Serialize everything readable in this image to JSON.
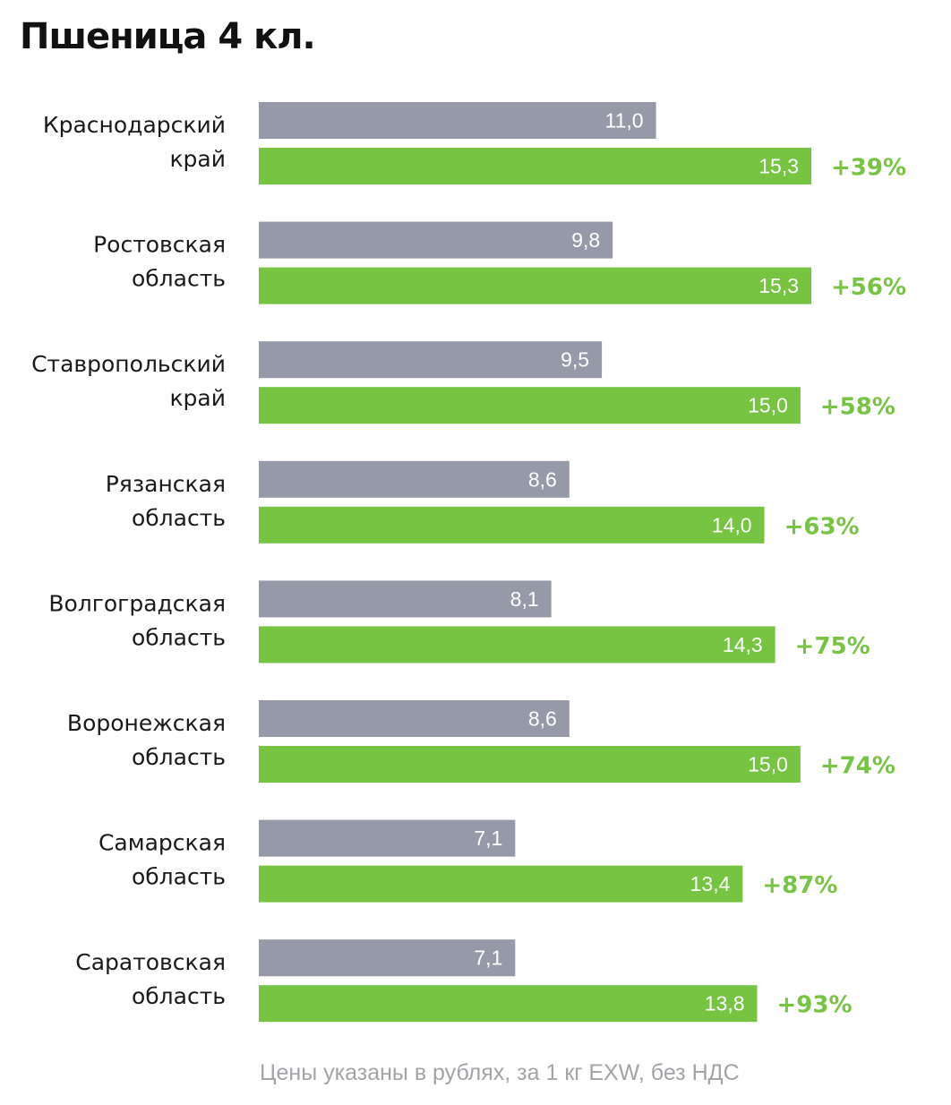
{
  "chart_data": {
    "type": "bar",
    "orientation": "horizontal",
    "title": "Пшеница 4 кл.",
    "categories": [
      [
        "Краснодарский",
        "край"
      ],
      [
        "Ростовская",
        "область"
      ],
      [
        "Ставропольский",
        "край"
      ],
      [
        "Рязанская",
        "область"
      ],
      [
        "Волгоградская",
        "область"
      ],
      [
        "Воронежская",
        "область"
      ],
      [
        "Самарская",
        "область"
      ],
      [
        "Саратовская",
        "область"
      ]
    ],
    "series": [
      {
        "color": "#9699a8",
        "values": [
          11.0,
          9.8,
          9.5,
          8.6,
          8.1,
          8.6,
          7.1,
          7.1
        ],
        "labels": [
          "11,0",
          "9,8",
          "9,5",
          "8,6",
          "8,1",
          "8,6",
          "7,1",
          "7,1"
        ]
      },
      {
        "color": "#76c442",
        "values": [
          15.3,
          15.3,
          15.0,
          14.0,
          14.3,
          15.0,
          13.4,
          13.8
        ],
        "labels": [
          "15,3",
          "15,3",
          "15,0",
          "14,0",
          "14,3",
          "15,0",
          "13,4",
          "13,8"
        ]
      }
    ],
    "change_labels": [
      "+39%",
      "+56%",
      "+58%",
      "+63%",
      "+75%",
      "+74%",
      "+87%",
      "+93%"
    ],
    "change_color": "#76c442",
    "xlim": [
      0,
      15.3
    ],
    "grid": false,
    "legend": "none",
    "footnote": "Цены указаны в рублях, за 1 кг EXW, без НДС"
  }
}
